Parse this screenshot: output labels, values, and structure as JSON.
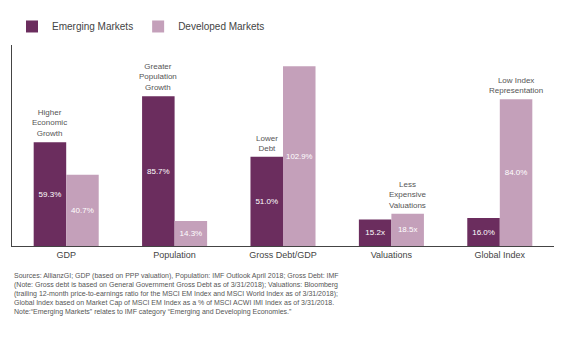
{
  "chart_data": {
    "type": "bar",
    "categories": [
      "GDP",
      "Population",
      "Gross Debt/GDP",
      "Valuations",
      "Global Index"
    ],
    "series": [
      {
        "name": "Emerging Markets",
        "color": "#6B2D5E",
        "values": [
          59.3,
          85.7,
          51.0,
          15.2,
          16.0
        ],
        "value_labels": [
          "59.3%",
          "85.7%",
          "51.0%",
          "15.2x",
          "16.0%"
        ]
      },
      {
        "name": "Developed Markets",
        "color": "#C4A0BA",
        "values": [
          40.7,
          14.3,
          102.9,
          18.5,
          84.0
        ],
        "value_labels": [
          "40.7%",
          "14.3%",
          "102.9%",
          "18.5x",
          "84.0%"
        ]
      }
    ],
    "ylim": [
      0,
      115
    ],
    "grid": false,
    "legend": "top left",
    "data_labels": true,
    "tick_labels": "x",
    "annotations": [
      {
        "category": "GDP",
        "series": "Emerging Markets",
        "text": "Higher\nEconomic\nGrowth"
      },
      {
        "category": "Population",
        "series": "Emerging Markets",
        "text": "Greater\nPopulation\nGrowth"
      },
      {
        "category": "Gross Debt/GDP",
        "series": "Emerging Markets",
        "text": "Lower\nDebt"
      },
      {
        "category": "Valuations",
        "series": "Developed Markets",
        "text": "Less\nExpensive\nValuations"
      },
      {
        "category": "Global Index",
        "series": "Developed Markets",
        "text": "Low Index\nRepresentation"
      }
    ],
    "footnote": "Sources: AllianzGI; GDP (based on PPP valuation), Population: IMF Outlook April 2018; Gross Debt: IMF\n(Note: Gross debt is based on General Government Gross Debt as of 3/31/2018); Valuations: Bloomberg\n(trailing 12-month price-to-earnings ratio for the MSCI EM Index and MSCI World Index as of 3/31/2018);\nGlobal Index based on Market Cap of MSCI EM Index as a % of MSCI ACWI IMI Index as of 3/31/2018.\nNote:“Emerging Markets” relates to IMF category “Emerging and Developing Economies.”"
  }
}
